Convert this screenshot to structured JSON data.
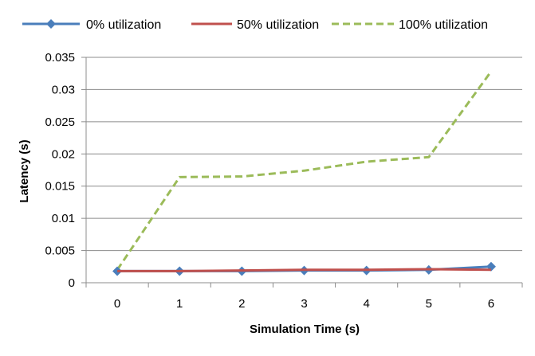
{
  "chart_data": {
    "type": "line",
    "xlabel": "Simulation Time (s)",
    "ylabel": "Latency (s)",
    "x": [
      0,
      1,
      2,
      3,
      4,
      5,
      6
    ],
    "x_ticks": [
      "0",
      "1",
      "2",
      "3",
      "4",
      "5",
      "6"
    ],
    "ylim": [
      0,
      0.035
    ],
    "y_ticks": [
      "0",
      "0.005",
      "0.01",
      "0.015",
      "0.02",
      "0.025",
      "0.03",
      "0.035"
    ],
    "grid": "horizontal",
    "legend_position": "top",
    "series": [
      {
        "name": "0% utilization",
        "color": "#4a7ebb",
        "style": "solid",
        "marker": "diamond",
        "values": [
          0.0018,
          0.0018,
          0.0018,
          0.0019,
          0.0019,
          0.002,
          0.0025
        ]
      },
      {
        "name": "50% utilization",
        "color": "#c0504d",
        "style": "solid",
        "marker": "none",
        "values": [
          0.0018,
          0.0018,
          0.0019,
          0.002,
          0.002,
          0.0021,
          0.002
        ]
      },
      {
        "name": "100% utilization",
        "color": "#9bbb59",
        "style": "dashed",
        "marker": "none",
        "values": [
          0.002,
          0.0164,
          0.0165,
          0.0174,
          0.0188,
          0.0195,
          0.0328
        ]
      }
    ]
  }
}
